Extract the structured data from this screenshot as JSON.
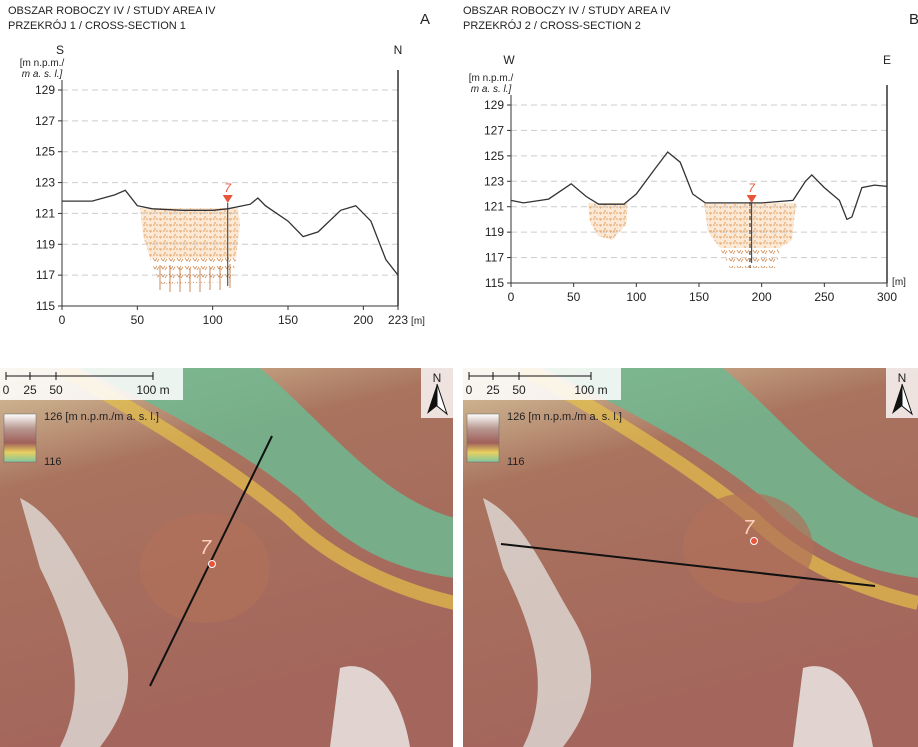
{
  "chart_data": [
    {
      "type": "line",
      "panel": "A",
      "title": "OBSZAR ROBOCZY IV / STUDY AREA IV",
      "subtitle": "PRZEKRÓJ 1 / CROSS-SECTION 1",
      "direction_labels": [
        "S",
        "N"
      ],
      "y_label": [
        "[m n.p.m./",
        "m a. s. l.]"
      ],
      "x_label": "[m]",
      "x": [
        0,
        20,
        35,
        42,
        50,
        60,
        80,
        100,
        110,
        125,
        130,
        135,
        150,
        160,
        170,
        185,
        195,
        205,
        215,
        223
      ],
      "values": [
        121.8,
        121.8,
        122.2,
        122.5,
        121.5,
        121.3,
        121.2,
        121.2,
        121.3,
        121.6,
        122,
        121.5,
        120.5,
        119.5,
        119.8,
        121.2,
        121.5,
        120.5,
        118,
        117
      ],
      "color": "#333333",
      "marker": {
        "label": "7",
        "x": 110
      },
      "xlim": [
        0,
        223
      ],
      "xticks": [
        0,
        50,
        100,
        150,
        200,
        223
      ],
      "ylim": [
        115,
        129
      ],
      "yticks": [
        115,
        117,
        119,
        121,
        123,
        125,
        127,
        129
      ],
      "grid": true
    },
    {
      "type": "line",
      "panel": "B",
      "title": "OBSZAR ROBOCZY IV / STUDY AREA IV",
      "subtitle": "PRZEKRÓJ 2 / CROSS-SECTION 2",
      "direction_labels": [
        "W",
        "E"
      ],
      "y_label": [
        "[m n.p.m./",
        "m a. s. l.]"
      ],
      "x_label": "[m]",
      "x": [
        0,
        10,
        30,
        48,
        60,
        70,
        90,
        100,
        115,
        125,
        135,
        145,
        155,
        175,
        200,
        225,
        235,
        240,
        250,
        262,
        268,
        272,
        280,
        290,
        300
      ],
      "values": [
        121.5,
        121.3,
        121.6,
        122.8,
        121.8,
        121.2,
        121.2,
        122,
        124,
        125.3,
        124.5,
        122,
        121.3,
        121.3,
        121.3,
        121.5,
        123,
        123.5,
        122.5,
        121.5,
        120,
        120.2,
        122.5,
        122.7,
        122.6
      ],
      "color": "#333333",
      "marker": {
        "label": "7",
        "x": 192
      },
      "xlim": [
        0,
        300
      ],
      "xticks": [
        0,
        50,
        100,
        150,
        200,
        250,
        300
      ],
      "ylim": [
        115,
        129
      ],
      "yticks": [
        115,
        117,
        119,
        121,
        123,
        125,
        127,
        129
      ],
      "grid": true
    }
  ],
  "maps": [
    {
      "scale_labels": [
        "0",
        "25",
        "50",
        "100 m"
      ],
      "legend_max": "126 [m n.p.m./m a. s. l.]",
      "legend_min": "116",
      "north": "N",
      "point_label": "7"
    },
    {
      "scale_labels": [
        "0",
        "25",
        "50",
        "100 m"
      ],
      "legend_max": "126 [m n.p.m./m a. s. l.]",
      "legend_min": "116",
      "north": "N",
      "point_label": "7"
    }
  ]
}
